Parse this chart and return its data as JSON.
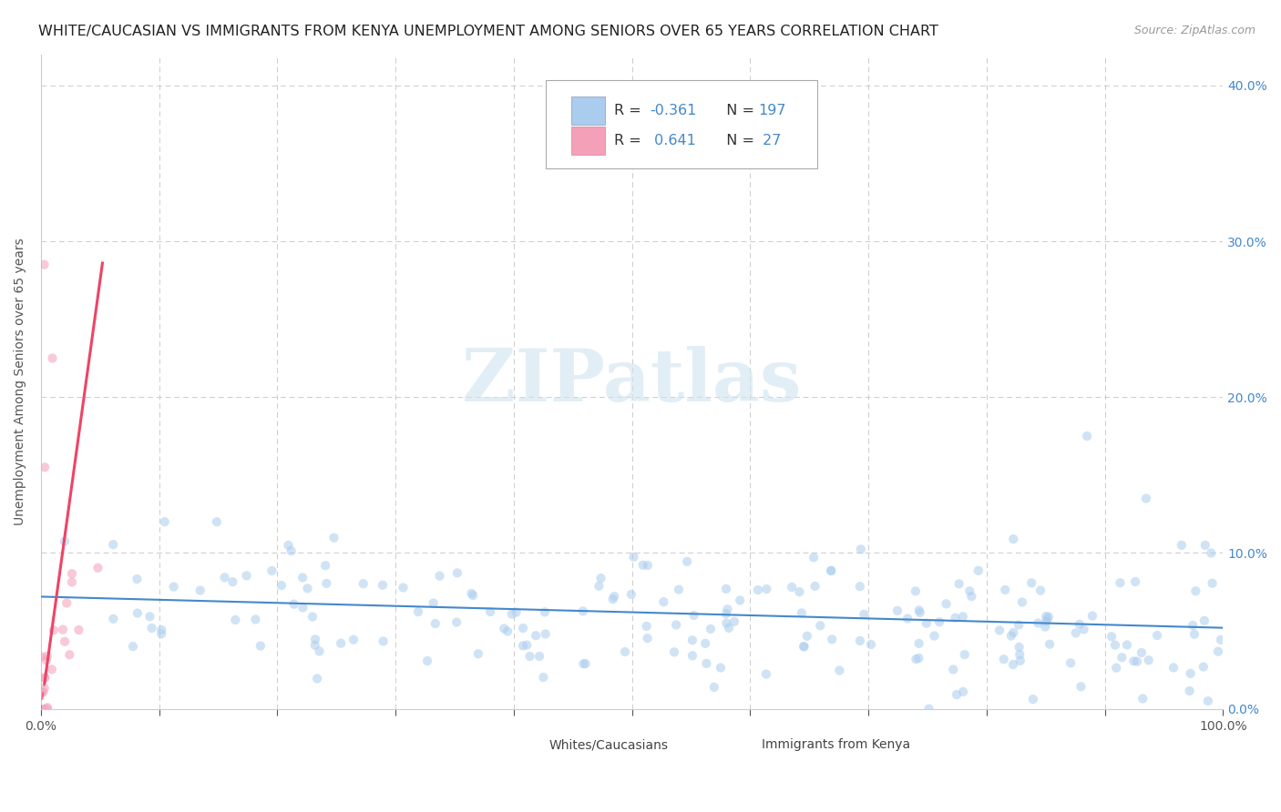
{
  "title": "WHITE/CAUCASIAN VS IMMIGRANTS FROM KENYA UNEMPLOYMENT AMONG SENIORS OVER 65 YEARS CORRELATION CHART",
  "source": "Source: ZipAtlas.com",
  "ylabel": "Unemployment Among Seniors over 65 years",
  "legend_label1": "Whites/Caucasians",
  "legend_label2": "Immigrants from Kenya",
  "R1": -0.361,
  "N1": 197,
  "R2": 0.641,
  "N2": 27,
  "color1": "#aaccee",
  "color2": "#f4a0b8",
  "trendline_color1": "#4488cc",
  "trendline_color2": "#ee4466",
  "bg_color": "#ffffff",
  "xlim": [
    0.0,
    1.0
  ],
  "ylim": [
    0.0,
    0.42
  ],
  "ytick_vals": [
    0.0,
    0.1,
    0.2,
    0.3,
    0.4
  ],
  "ytick_labels": [
    "0.0%",
    "10.0%",
    "20.0%",
    "30.0%",
    "40.0%"
  ],
  "xtick_vals": [
    0.0,
    0.1,
    0.2,
    0.3,
    0.4,
    0.5,
    0.6,
    0.7,
    0.8,
    0.9,
    1.0
  ],
  "grid_color": "#cccccc",
  "title_fontsize": 11.5,
  "axis_fontsize": 10,
  "tick_fontsize": 10,
  "scatter_alpha": 0.55,
  "scatter_size": 55
}
